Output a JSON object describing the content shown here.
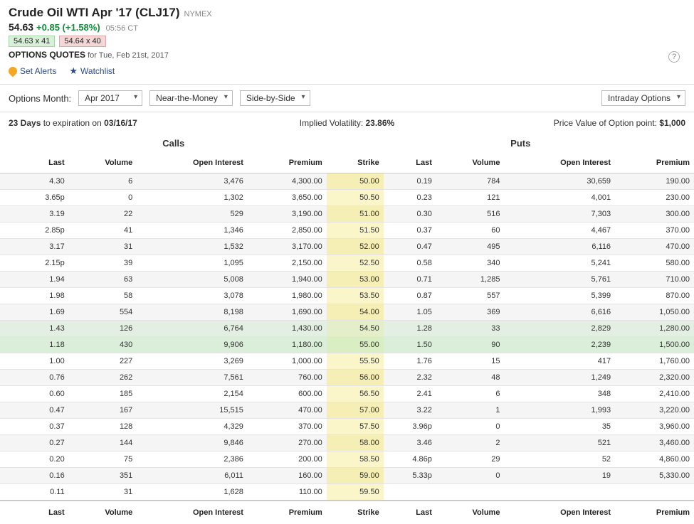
{
  "header": {
    "title": "Crude Oil WTI Apr '17 (CLJ17)",
    "exchange": "NYMEX",
    "price": "54.63",
    "change": "+0.85 (+1.58%)",
    "time": "05:56 CT",
    "bid": "54.63 x 41",
    "ask": "54.64 x 40",
    "subtitle_label": "OPTIONS QUOTES",
    "subtitle_date": "for Tue, Feb 21st, 2017"
  },
  "actions": {
    "alerts": "Set Alerts",
    "watchlist": "Watchlist"
  },
  "controls": {
    "label": "Options Month:",
    "month": "Apr 2017",
    "moneyness": "Near-the-Money",
    "layout": "Side-by-Side",
    "view": "Intraday Options"
  },
  "info": {
    "days": "23 Days",
    "exp_label": "to expiration on",
    "exp_date": "03/16/17",
    "iv_label": "Implied Volatility:",
    "iv_value": "23.86%",
    "pv_label": "Price Value of Option point:",
    "pv_value": "$1,000"
  },
  "sections": {
    "calls": "Calls",
    "puts": "Puts"
  },
  "cols": {
    "last": "Last",
    "volume": "Volume",
    "oi": "Open Interest",
    "premium": "Premium",
    "strike": "Strike"
  },
  "rows": [
    {
      "cl": "4.30",
      "cv": "6",
      "coi": "3,476",
      "cp": "4,300.00",
      "s": "50.00",
      "pl": "0.19",
      "pv": "784",
      "poi": "30,659",
      "pp": "190.00",
      "alt": true
    },
    {
      "cl": "3.65p",
      "cv": "0",
      "coi": "1,302",
      "cp": "3,650.00",
      "s": "50.50",
      "pl": "0.23",
      "pv": "121",
      "poi": "4,001",
      "pp": "230.00"
    },
    {
      "cl": "3.19",
      "cv": "22",
      "coi": "529",
      "cp": "3,190.00",
      "s": "51.00",
      "pl": "0.30",
      "pv": "516",
      "poi": "7,303",
      "pp": "300.00",
      "alt": true
    },
    {
      "cl": "2.85p",
      "cv": "41",
      "coi": "1,346",
      "cp": "2,850.00",
      "s": "51.50",
      "pl": "0.37",
      "pv": "60",
      "poi": "4,467",
      "pp": "370.00"
    },
    {
      "cl": "3.17",
      "cv": "31",
      "coi": "1,532",
      "cp": "3,170.00",
      "s": "52.00",
      "pl": "0.47",
      "pv": "495",
      "poi": "6,116",
      "pp": "470.00",
      "alt": true
    },
    {
      "cl": "2.15p",
      "cv": "39",
      "coi": "1,095",
      "cp": "2,150.00",
      "s": "52.50",
      "pl": "0.58",
      "pv": "340",
      "poi": "5,241",
      "pp": "580.00"
    },
    {
      "cl": "1.94",
      "cv": "63",
      "coi": "5,008",
      "cp": "1,940.00",
      "s": "53.00",
      "pl": "0.71",
      "pv": "1,285",
      "poi": "5,761",
      "pp": "710.00",
      "alt": true
    },
    {
      "cl": "1.98",
      "cv": "58",
      "coi": "3,078",
      "cp": "1,980.00",
      "s": "53.50",
      "pl": "0.87",
      "pv": "557",
      "poi": "5,399",
      "pp": "870.00"
    },
    {
      "cl": "1.69",
      "cv": "554",
      "coi": "8,198",
      "cp": "1,690.00",
      "s": "54.00",
      "pl": "1.05",
      "pv": "369",
      "poi": "6,616",
      "pp": "1,050.00",
      "alt": true
    },
    {
      "cl": "1.43",
      "cv": "126",
      "coi": "6,764",
      "cp": "1,430.00",
      "s": "54.50",
      "pl": "1.28",
      "pv": "33",
      "poi": "2,829",
      "pp": "1,280.00",
      "hl": 1
    },
    {
      "cl": "1.18",
      "cv": "430",
      "coi": "9,906",
      "cp": "1,180.00",
      "s": "55.00",
      "pl": "1.50",
      "pv": "90",
      "poi": "2,239",
      "pp": "1,500.00",
      "hl": 2
    },
    {
      "cl": "1.00",
      "cv": "227",
      "coi": "3,269",
      "cp": "1,000.00",
      "s": "55.50",
      "pl": "1.76",
      "pv": "15",
      "poi": "417",
      "pp": "1,760.00"
    },
    {
      "cl": "0.76",
      "cv": "262",
      "coi": "7,561",
      "cp": "760.00",
      "s": "56.00",
      "pl": "2.32",
      "pv": "48",
      "poi": "1,249",
      "pp": "2,320.00",
      "alt": true
    },
    {
      "cl": "0.60",
      "cv": "185",
      "coi": "2,154",
      "cp": "600.00",
      "s": "56.50",
      "pl": "2.41",
      "pv": "6",
      "poi": "348",
      "pp": "2,410.00"
    },
    {
      "cl": "0.47",
      "cv": "167",
      "coi": "15,515",
      "cp": "470.00",
      "s": "57.00",
      "pl": "3.22",
      "pv": "1",
      "poi": "1,993",
      "pp": "3,220.00",
      "alt": true
    },
    {
      "cl": "0.37",
      "cv": "128",
      "coi": "4,329",
      "cp": "370.00",
      "s": "57.50",
      "pl": "3.96p",
      "pv": "0",
      "poi": "35",
      "pp": "3,960.00"
    },
    {
      "cl": "0.27",
      "cv": "144",
      "coi": "9,846",
      "cp": "270.00",
      "s": "58.00",
      "pl": "3.46",
      "pv": "2",
      "poi": "521",
      "pp": "3,460.00",
      "alt": true
    },
    {
      "cl": "0.20",
      "cv": "75",
      "coi": "2,386",
      "cp": "200.00",
      "s": "58.50",
      "pl": "4.86p",
      "pv": "29",
      "poi": "52",
      "pp": "4,860.00"
    },
    {
      "cl": "0.16",
      "cv": "351",
      "coi": "6,011",
      "cp": "160.00",
      "s": "59.00",
      "pl": "5.33p",
      "pv": "0",
      "poi": "19",
      "pp": "5,330.00",
      "alt": true
    },
    {
      "cl": "0.11",
      "cv": "31",
      "coi": "1,628",
      "cp": "110.00",
      "s": "59.50",
      "pl": "",
      "pv": "",
      "poi": "",
      "pp": ""
    }
  ]
}
